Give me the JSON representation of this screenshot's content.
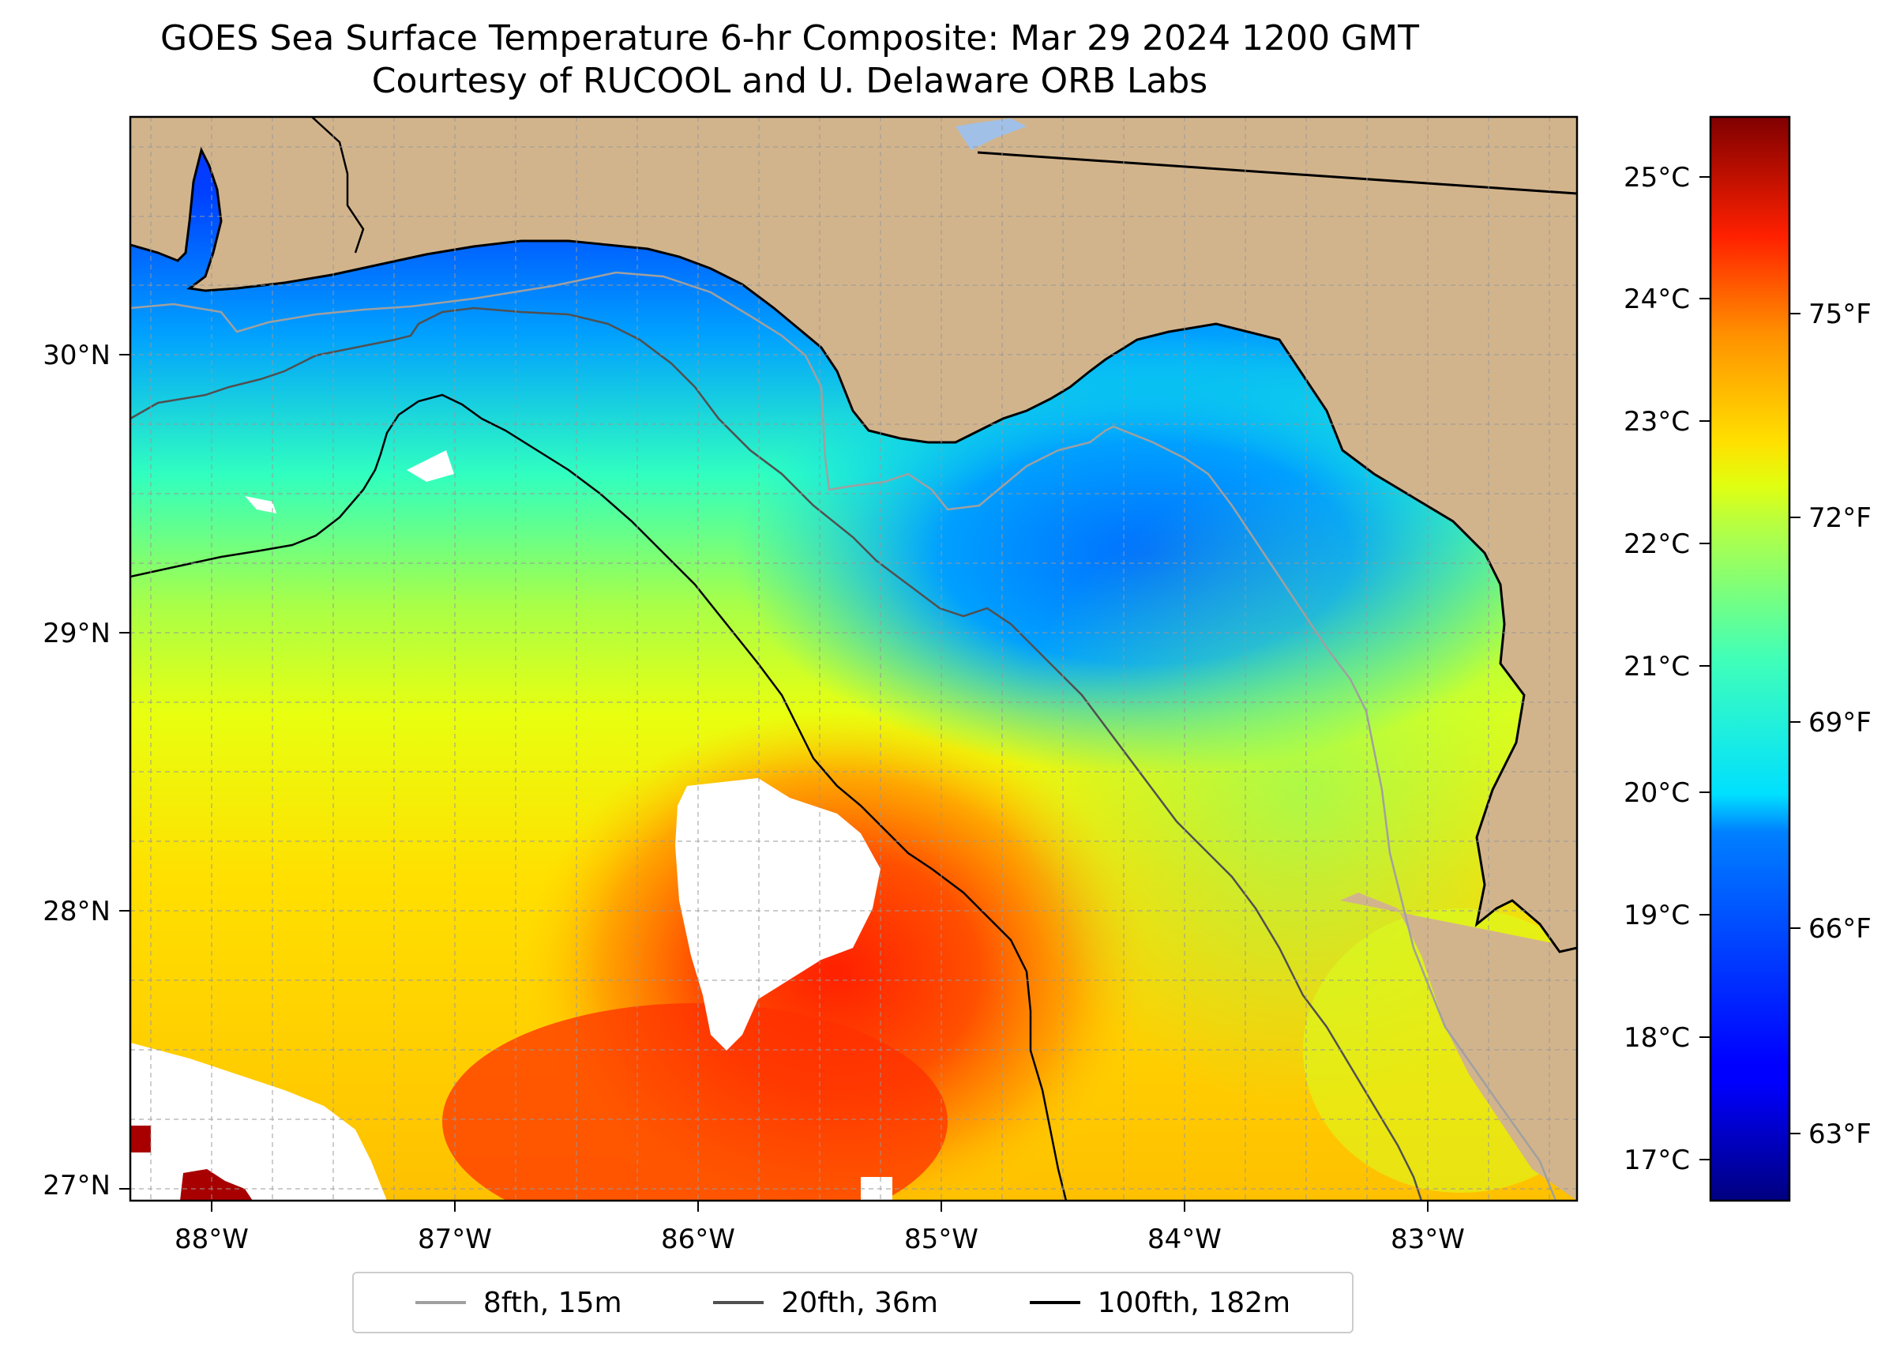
{
  "title": {
    "line1": "GOES Sea Surface Temperature 6-hr Composite: Mar 29 2024 1200 GMT",
    "line2": "Courtesy of RUCOOL and U. Delaware ORB Labs"
  },
  "map": {
    "lon_ticks": [
      "88°W",
      "87°W",
      "86°W",
      "85°W",
      "84°W",
      "83°W"
    ],
    "lat_ticks": [
      "30°N",
      "29°N",
      "28°N",
      "27°N"
    ],
    "land_color": "#d2b48c",
    "grid": true
  },
  "colorbar": {
    "colormap": "jet",
    "celsius_ticks": [
      "25°C",
      "24°C",
      "23°C",
      "22°C",
      "21°C",
      "20°C",
      "19°C",
      "18°C",
      "17°C"
    ],
    "fahrenheit_ticks": [
      "75°F",
      "72°F",
      "69°F",
      "66°F",
      "63°F"
    ]
  },
  "legend": {
    "entries": [
      {
        "label": "8fth, 15m",
        "color": "#a0a0a0"
      },
      {
        "label": "20fth, 36m",
        "color": "#505050"
      },
      {
        "label": "100fth, 182m",
        "color": "#000000"
      }
    ]
  }
}
